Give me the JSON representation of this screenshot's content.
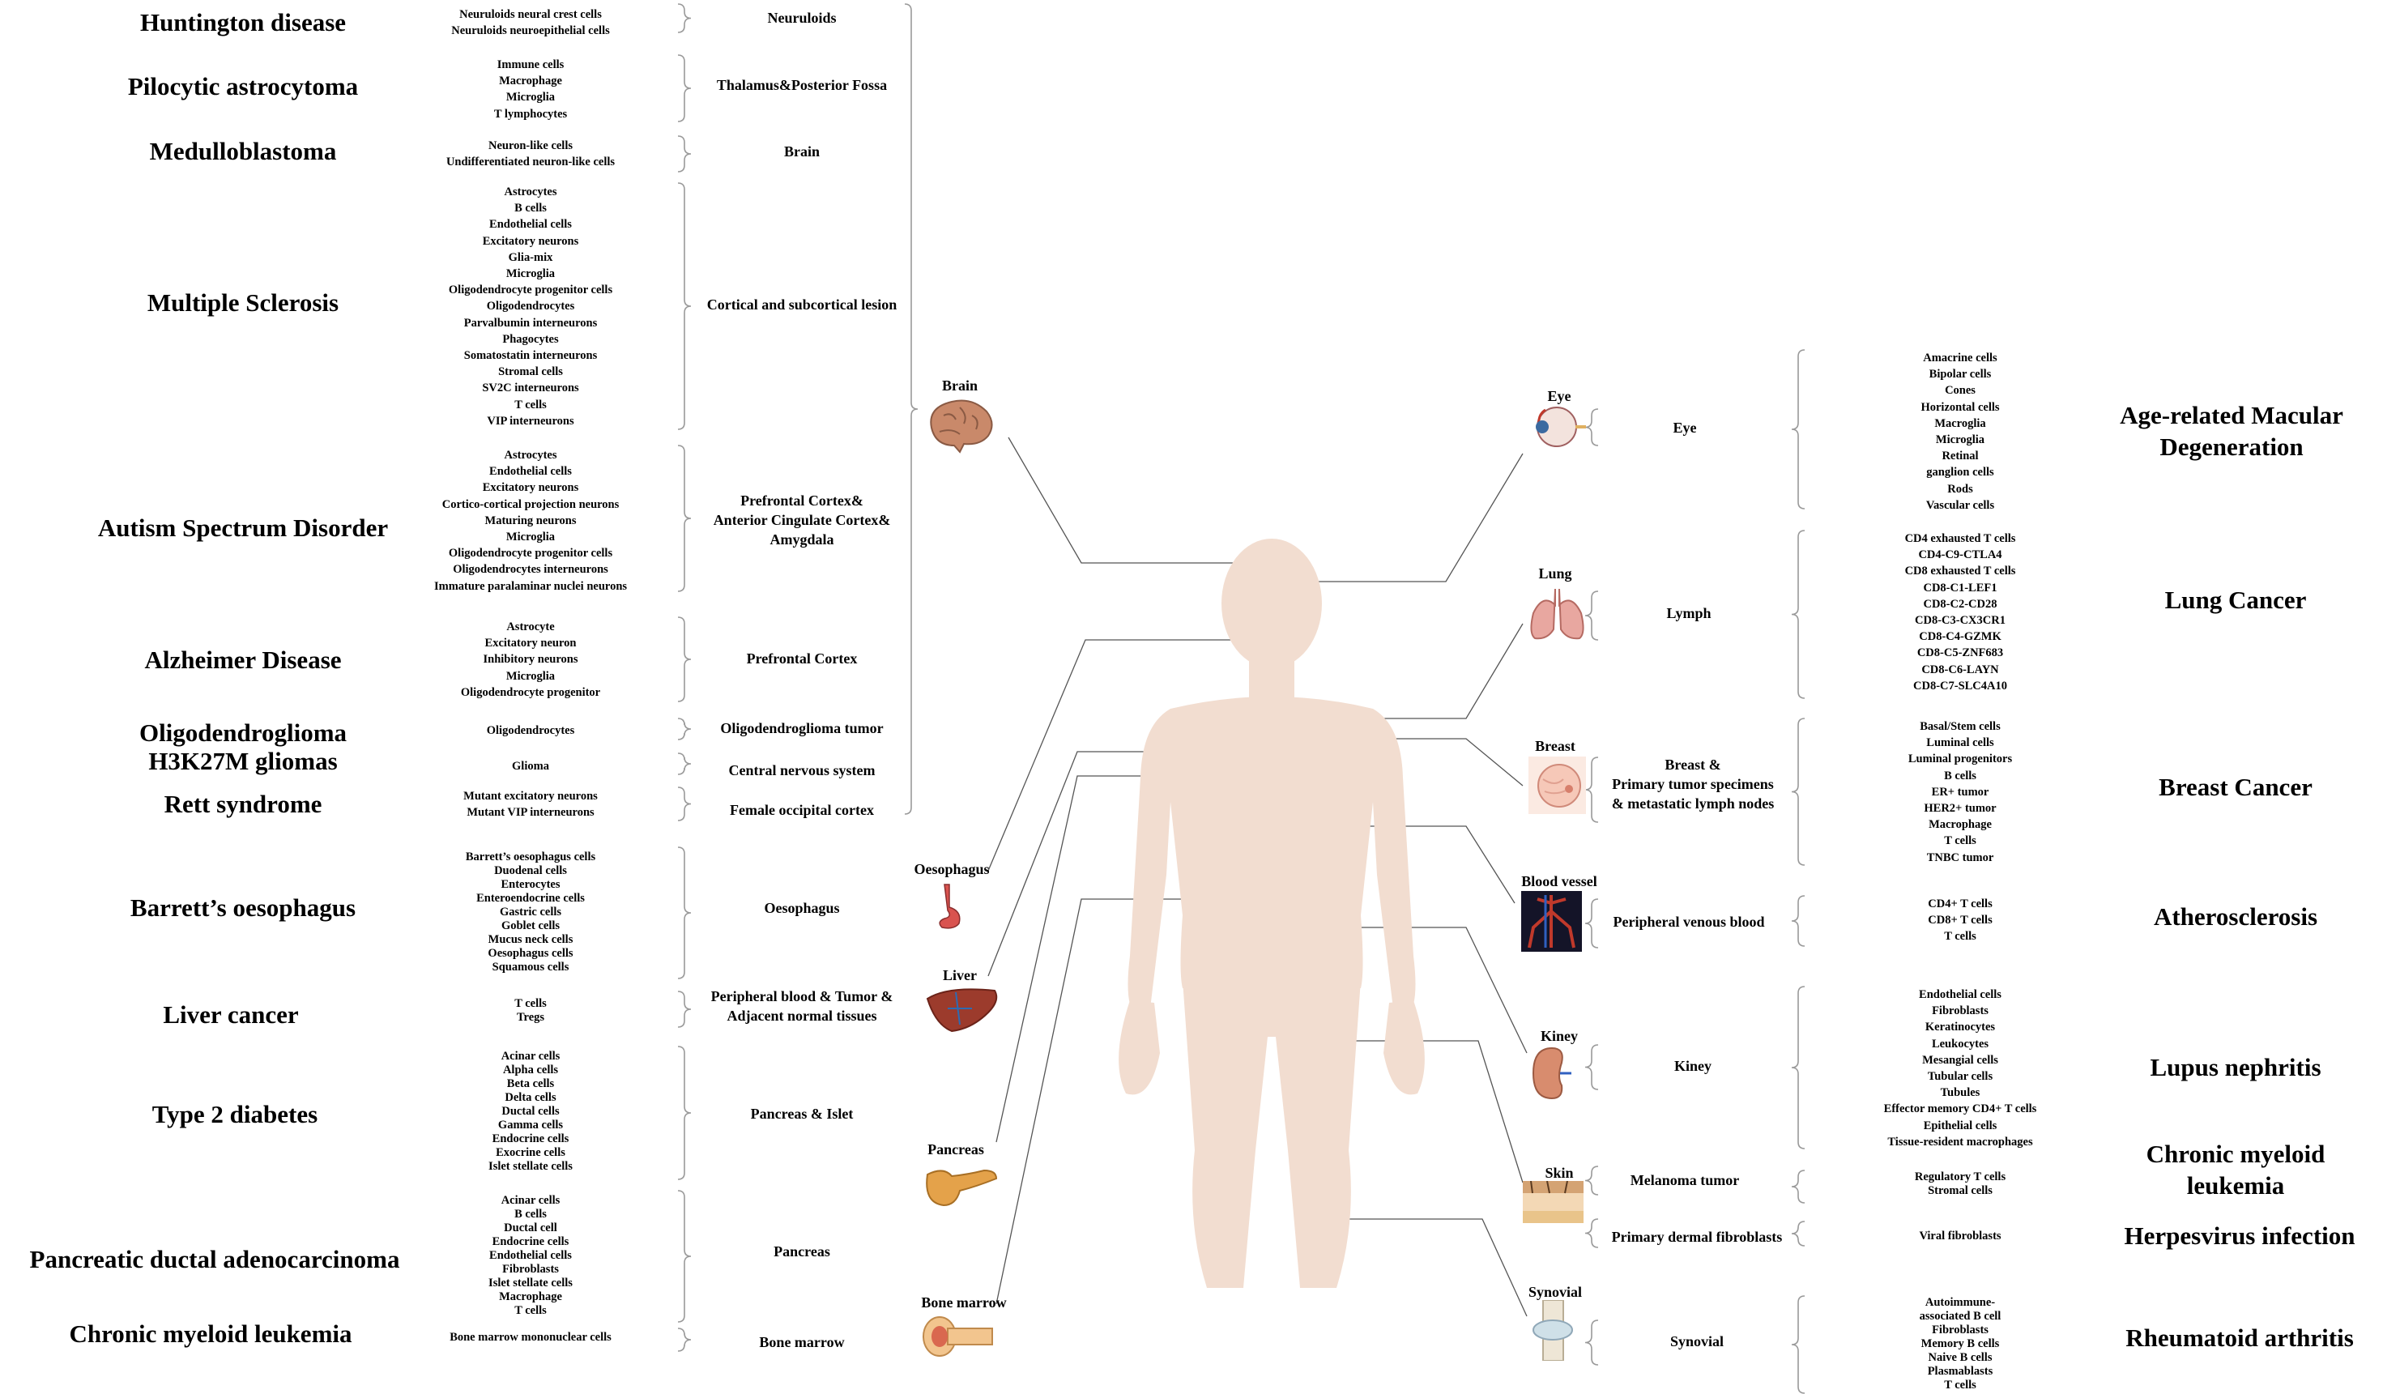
{
  "diseases_left": [
    {
      "name": "Huntington disease",
      "cells": [
        "Neuruloids neural crest cells",
        "Neuruloids neuroepithelial cells"
      ],
      "tissue": [
        "Neuruloids"
      ]
    },
    {
      "name": "Pilocytic astrocytoma",
      "cells": [
        "Immune cells",
        "Macrophage",
        "Microglia",
        "T lymphocytes"
      ],
      "tissue": [
        "Thalamus&Posterior Fossa"
      ]
    },
    {
      "name": "Medulloblastoma",
      "cells": [
        "Neuron-like cells",
        "Undifferentiated neuron-like cells"
      ],
      "tissue": [
        "Brain"
      ]
    },
    {
      "name": "Multiple Sclerosis",
      "cells": [
        "Astrocytes",
        "B cells",
        "Endothelial cells",
        "Excitatory neurons",
        "Glia-mix",
        "Microglia",
        "Oligodendrocyte progenitor cells",
        "Oligodendrocytes",
        "Parvalbumin interneurons",
        "Phagocytes",
        "Somatostatin interneurons",
        "Stromal cells",
        "SV2C interneurons",
        "T cells",
        "VIP interneurons"
      ],
      "tissue": [
        "Cortical and subcortical lesion"
      ]
    },
    {
      "name": "Autism Spectrum Disorder",
      "cells": [
        "Astrocytes",
        "Endothelial cells",
        "Excitatory neurons",
        "Cortico-cortical projection neurons",
        "Maturing neurons",
        "Microglia",
        "Oligodendrocyte progenitor cells",
        "Oligodendrocytes interneurons",
        "Immature paralaminar nuclei neurons"
      ],
      "tissue": [
        "Prefrontal Cortex&",
        "Anterior Cingulate Cortex&",
        "Amygdala"
      ]
    },
    {
      "name": "Alzheimer Disease",
      "cells": [
        "Astrocyte",
        "Excitatory neuron",
        "Inhibitory neurons",
        "Microglia",
        "Oligodendrocyte progenitor"
      ],
      "tissue": [
        "Prefrontal Cortex"
      ]
    },
    {
      "name": "Oligodendroglioma",
      "cells": [
        "Oligodendrocytes"
      ],
      "tissue": [
        "Oligodendroglioma tumor"
      ]
    },
    {
      "name": "H3K27M gliomas",
      "cells": [
        "Glioma"
      ],
      "tissue": [
        "Central nervous system"
      ]
    },
    {
      "name": "Rett syndrome",
      "cells": [
        "Mutant excitatory neurons",
        "Mutant VIP interneurons"
      ],
      "tissue": [
        "Female occipital cortex"
      ]
    },
    {
      "name": "Barrett’s oesophagus",
      "cells": [
        "Barrett’s oesophagus cells",
        "Duodenal cells",
        "Enterocytes",
        "Enteroendocrine cells",
        "Gastric cells",
        "Goblet cells",
        "Mucus neck cells",
        "Oesophagus cells",
        "Squamous cells"
      ],
      "tissue": [
        "Oesophagus"
      ]
    },
    {
      "name": "Liver cancer",
      "cells": [
        "T cells",
        "Tregs"
      ],
      "tissue": [
        "Peripheral blood & Tumor &",
        "Adjacent normal tissues"
      ]
    },
    {
      "name": "Type 2 diabetes",
      "cells": [
        "Acinar cells",
        "Alpha cells",
        "Beta cells",
        "Delta cells",
        "Ductal cells",
        "Gamma cells",
        "Endocrine cells",
        "Exocrine cells",
        "Islet stellate cells"
      ],
      "tissue": [
        "Pancreas & Islet"
      ]
    },
    {
      "name": "Pancreatic ductal adenocarcinoma",
      "cells": [
        "Acinar cells",
        "B cells",
        "Ductal cell",
        "Endocrine cells",
        "Endothelial cells",
        "Fibroblasts",
        "Islet stellate cells",
        "Macrophage",
        "T cells"
      ],
      "tissue": [
        "Pancreas"
      ]
    },
    {
      "name": "Chronic myeloid leukemia",
      "cells": [
        "Bone marrow mononuclear cells"
      ],
      "tissue": [
        "Bone marrow"
      ]
    }
  ],
  "organs_left": [
    {
      "label": "Brain",
      "icon": "brain-icon"
    },
    {
      "label": "Oesophagus",
      "icon": "oesophagus-icon"
    },
    {
      "label": "Liver",
      "icon": "liver-icon"
    },
    {
      "label": "Pancreas",
      "icon": "pancreas-icon"
    },
    {
      "label": "Bone marrow",
      "icon": "bone-marrow-icon"
    }
  ],
  "organs_right": [
    {
      "label": "Eye",
      "icon": "eye-icon"
    },
    {
      "label": "Lung",
      "icon": "lung-icon"
    },
    {
      "label": "Breast",
      "icon": "breast-icon"
    },
    {
      "label": "Blood vessel",
      "icon": "blood-vessel-icon"
    },
    {
      "label": "Kiney",
      "icon": "kidney-icon"
    },
    {
      "label": "Skin",
      "icon": "skin-icon"
    },
    {
      "label": "Synovial",
      "icon": "synovial-icon"
    }
  ],
  "tissues_right": [
    [
      "Eye"
    ],
    [
      "Lymph"
    ],
    [
      "Breast &",
      "Primary tumor specimens",
      "& metastatic lymph nodes"
    ],
    [
      "Peripheral venous blood"
    ],
    [
      "Kiney"
    ],
    [
      "Melanoma tumor"
    ],
    [
      "Primary dermal fibroblasts"
    ],
    [
      "Synovial"
    ]
  ],
  "cells_right": [
    [
      "Amacrine cells",
      "Bipolar cells",
      "Cones",
      "Horizontal cells",
      "Macroglia",
      "Microglia",
      "Retinal",
      "ganglion cells",
      "Rods",
      "Vascular cells"
    ],
    [
      "CD4 exhausted T cells",
      "CD4-C9-CTLA4",
      "CD8 exhausted T cells",
      "CD8-C1-LEF1",
      "CD8-C2-CD28",
      "CD8-C3-CX3CR1",
      "CD8-C4-GZMK",
      "CD8-C5-ZNF683",
      "CD8-C6-LAYN",
      "CD8-C7-SLC4A10"
    ],
    [
      "Basal/Stem cells",
      "Luminal cells",
      "Luminal progenitors",
      "B cells",
      "ER+ tumor",
      "HER2+ tumor",
      "Macrophage",
      "T cells",
      "TNBC tumor"
    ],
    [
      "CD4+ T cells",
      "CD8+ T cells",
      "T cells"
    ],
    [
      "Endothelial cells",
      "Fibroblasts",
      "Keratinocytes",
      "Leukocytes",
      "Mesangial cells",
      "Tubular cells",
      "Tubules",
      "Effector memory CD4+ T cells",
      "Epithelial cells",
      "Tissue-resident macrophages"
    ],
    [
      "Regulatory T cells",
      "Stromal cells"
    ],
    [
      "Viral fibroblasts"
    ],
    [
      "Autoimmune-",
      "associated B cell",
      "Fibroblasts",
      "Memory B cells",
      "Naive B cells",
      "Plasmablasts",
      "T cells"
    ]
  ],
  "diseases_right": [
    [
      "Age-related Macular",
      "Degeneration"
    ],
    [
      "Lung Cancer"
    ],
    [
      "Breast Cancer"
    ],
    [
      "Atherosclerosis"
    ],
    [
      "Lupus nephritis"
    ],
    [
      "Chronic myeloid",
      "leukemia"
    ],
    [
      "Herpesvirus infection"
    ],
    [
      "Rheumatoid arthritis"
    ]
  ],
  "colors": {
    "body": "#f2ddd0",
    "line": "#555555",
    "brace": "#999999",
    "brain": "#c9896a",
    "liver": "#9c3b2c",
    "pancreas": "#e4a24a",
    "vessel": "#c0392b",
    "skin": "#e9c48a",
    "lung": "#e8a7a0",
    "breast": "#f6c8b8"
  }
}
